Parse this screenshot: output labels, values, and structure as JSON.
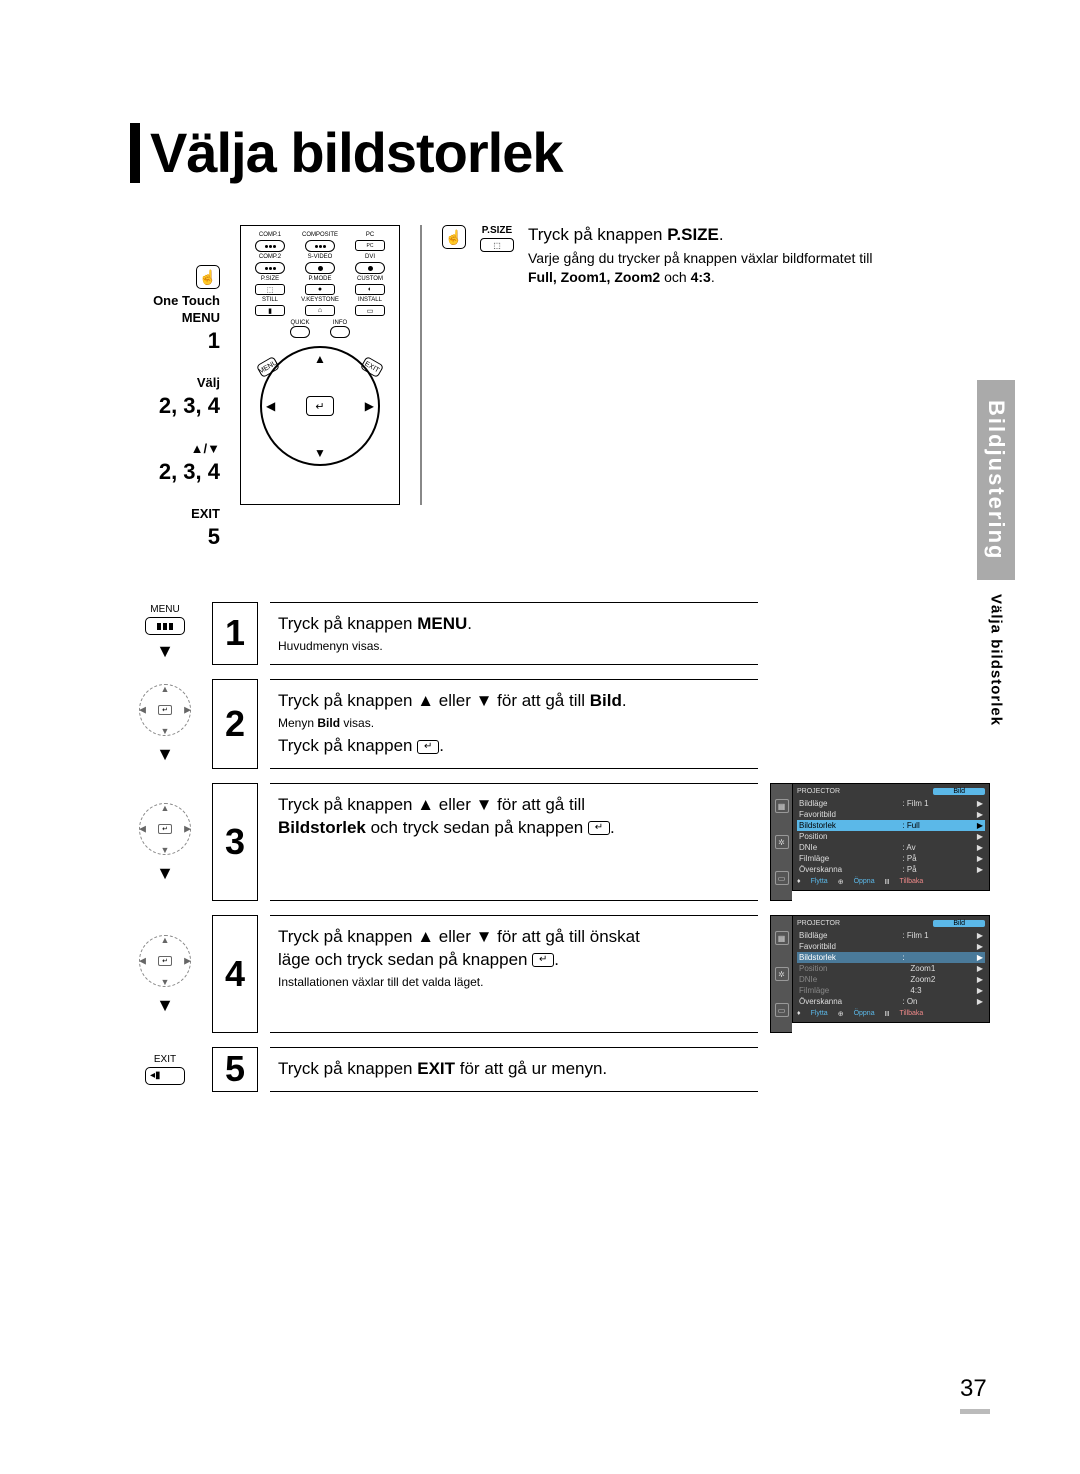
{
  "title": "Välja bildstorlek",
  "side_tab": {
    "grey": "Bildjustering",
    "black": "Välja bildstorlek"
  },
  "page_number": "37",
  "left_labels": {
    "one_touch": "One Touch",
    "menu": "MENU",
    "n1": "1",
    "valj": "Välj",
    "n234a": "2, 3, 4",
    "arrows": "▲/▼",
    "n234b": "2, 3, 4",
    "exit": "EXIT",
    "n5": "5"
  },
  "remote": {
    "row1": [
      "COMP.1",
      "COMPOSITE",
      "PC"
    ],
    "row2": [
      "COMP.2",
      "S-VIDEO",
      "DVI"
    ],
    "row3": [
      "P.SIZE",
      "P.MODE",
      "CUSTOM"
    ],
    "row4": [
      "STILL",
      "V.KEYSTONE",
      "INSTALL"
    ],
    "quick": "QUICK",
    "info": "INFO",
    "menu_side": "MENU",
    "exit_side": "EXIT"
  },
  "psize": {
    "label": "P.SIZE",
    "headline_pre": "Tryck på knappen ",
    "headline_bold": "P.SIZE",
    "headline_post": ".",
    "sub1": "Varje gång du trycker på knappen växlar bildformatet till",
    "sub2_pre": "",
    "sub2_bold": "Full, Zoom1, Zoom2",
    "sub2_mid": " och ",
    "sub2_bold2": "4:3",
    "sub2_post": "."
  },
  "steps": {
    "s1": {
      "icon_label": "MENU",
      "num": "1",
      "line1_pre": "Tryck på knappen ",
      "line1_bold": "MENU",
      "line1_post": ".",
      "sub": "Huvudmenyn visas."
    },
    "s2": {
      "num": "2",
      "line1": "Tryck på knappen ▲ eller ▼ för att gå till ",
      "line1_bold": "Bild",
      "line1_post": ".",
      "sub_pre": "Menyn ",
      "sub_bold": "Bild",
      "sub_post": " visas.",
      "line2": "Tryck på knappen "
    },
    "s3": {
      "num": "3",
      "line1": "Tryck på knappen ▲ eller ▼ för att gå till",
      "line2_bold": "Bildstorlek",
      "line2_mid": " och tryck sedan på knappen "
    },
    "s4": {
      "num": "4",
      "line1": "Tryck på knappen ▲ eller ▼ för att gå till önskat",
      "line2": "läge och tryck sedan på knappen ",
      "sub": "Installationen växlar till det valda läget."
    },
    "s5": {
      "icon_label": "EXIT",
      "num": "5",
      "line1_pre": "Tryck på knappen ",
      "line1_bold": "EXIT",
      "line1_post": " för att gå ur menyn."
    }
  },
  "osd": {
    "projector": "PROJECTOR",
    "title": "Bild",
    "rows1": [
      {
        "k": "Bildläge",
        "v": ": Film 1",
        "hl": false
      },
      {
        "k": "Favoritbild",
        "v": "",
        "hl": false
      },
      {
        "k": "Bildstorlek",
        "v": ": Full",
        "hl": true
      },
      {
        "k": "Position",
        "v": "",
        "hl": false
      },
      {
        "k": "DNIe",
        "v": ": Av",
        "hl": false
      },
      {
        "k": "Filmläge",
        "v": ": På",
        "hl": false
      },
      {
        "k": "Överskanna",
        "v": ": På",
        "hl": false
      }
    ],
    "rows2": [
      {
        "k": "Bildläge",
        "v": ": Film 1",
        "hl": false
      },
      {
        "k": "Favoritbild",
        "v": "",
        "hl": false
      },
      {
        "k": "Bildstorlek",
        "v": ":",
        "hl": true,
        "sub": true
      },
      {
        "k": "Position",
        "v": "Zoom1",
        "hl": false,
        "indent": true
      },
      {
        "k": "DNIe",
        "v": "Zoom2",
        "hl": false,
        "indent": true
      },
      {
        "k": "Filmläge",
        "v": "4:3",
        "hl": false,
        "indent": true
      },
      {
        "k": "Överskanna",
        "v": ": On",
        "hl": false
      }
    ],
    "footer": {
      "f1": "Flytta",
      "f2": "Öppna",
      "f3": "Tillbaka"
    }
  }
}
